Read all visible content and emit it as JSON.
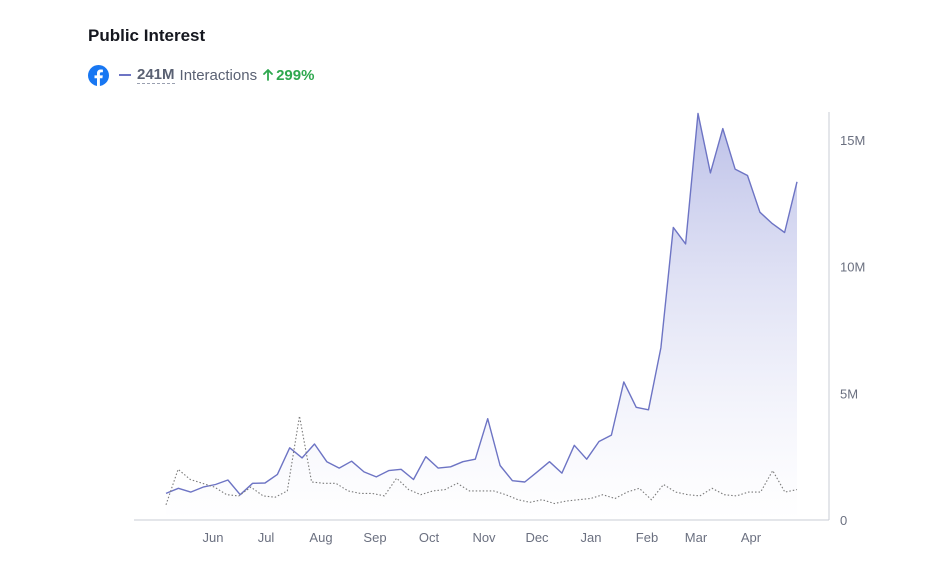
{
  "header": {
    "title": "Public Interest"
  },
  "legend": {
    "icon": "facebook-icon",
    "value": "241M",
    "metric": "Interactions",
    "change": "299%",
    "change_direction": "up",
    "colors": {
      "facebook": "#1877f2",
      "series": "#6d74c4",
      "positive": "#2fa84f"
    }
  },
  "chart_data": {
    "type": "area",
    "title": "Public Interest",
    "xlabel": "",
    "ylabel": "",
    "x_tick_labels": [
      "Jun",
      "Jul",
      "Aug",
      "Sep",
      "Oct",
      "Nov",
      "Dec",
      "Jan",
      "Feb",
      "Mar",
      "Apr"
    ],
    "y_tick_labels": [
      "0",
      "5M",
      "10M",
      "15M"
    ],
    "y_tick_values": [
      0,
      5000000,
      10000000,
      15000000
    ],
    "ylim": [
      0,
      16000000
    ],
    "y_axis_position": "right",
    "grid": false,
    "series": [
      {
        "style": "solid-line-with-gradient-fill",
        "color": "#6d74c4",
        "values": [
          1050000,
          1250000,
          1100000,
          1300000,
          1400000,
          1580000,
          1000000,
          1450000,
          1460000,
          1800000,
          2850000,
          2450000,
          3000000,
          2300000,
          2050000,
          2320000,
          1900000,
          1700000,
          1950000,
          2000000,
          1600000,
          2500000,
          2050000,
          2100000,
          2300000,
          2400000,
          4000000,
          2150000,
          1550000,
          1500000,
          1900000,
          2300000,
          1850000,
          2950000,
          2400000,
          3100000,
          3350000,
          5450000,
          4450000,
          4350000,
          6800000,
          11550000,
          10900000,
          16050000,
          13700000,
          15450000,
          13850000,
          13600000,
          12150000,
          11700000,
          11350000,
          13350000
        ]
      },
      {
        "style": "dotted-line",
        "color": "#7a7a7a",
        "values": [
          600000,
          2000000,
          1600000,
          1450000,
          1300000,
          1000000,
          950000,
          1300000,
          950000,
          900000,
          1150000,
          4100000,
          1500000,
          1450000,
          1450000,
          1150000,
          1050000,
          1050000,
          950000,
          1650000,
          1200000,
          1000000,
          1150000,
          1200000,
          1450000,
          1150000,
          1150000,
          1150000,
          1000000,
          800000,
          700000,
          800000,
          650000,
          750000,
          800000,
          850000,
          1000000,
          850000,
          1100000,
          1250000,
          800000,
          1400000,
          1100000,
          1000000,
          950000,
          1250000,
          1000000,
          950000,
          1100000,
          1100000,
          1950000,
          1100000,
          1200000
        ]
      }
    ]
  }
}
